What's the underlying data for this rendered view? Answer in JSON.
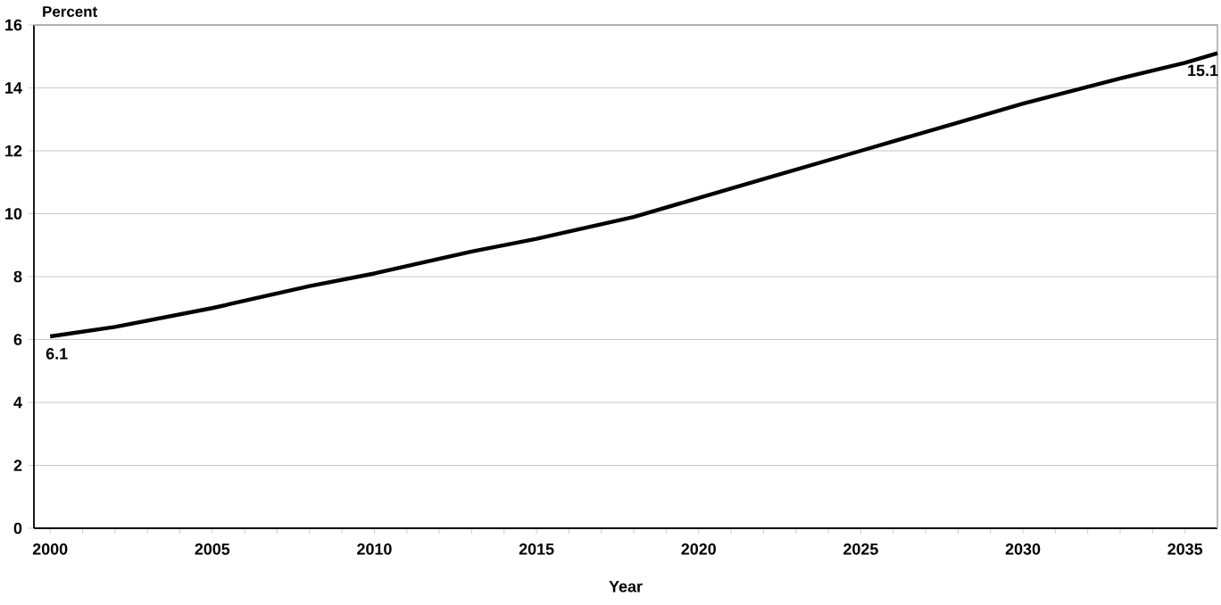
{
  "chart_data": {
    "type": "line",
    "xlabel": "Year",
    "ylabel": "Percent",
    "x": [
      2000,
      2002,
      2005,
      2008,
      2010,
      2013,
      2015,
      2018,
      2020,
      2022,
      2025,
      2028,
      2030,
      2033,
      2035,
      2036
    ],
    "series": [
      {
        "color": "#000000",
        "values": [
          6.1,
          6.4,
          7.0,
          7.7,
          8.1,
          8.8,
          9.2,
          9.9,
          10.5,
          11.1,
          12.0,
          12.9,
          13.5,
          14.3,
          14.8,
          15.1
        ],
        "value_labels": [
          "6.1",
          null,
          null,
          null,
          null,
          null,
          null,
          null,
          null,
          null,
          null,
          null,
          null,
          null,
          null,
          "15.1"
        ]
      }
    ],
    "xlim": [
      1999.5,
      2036
    ],
    "ylim": [
      0,
      16
    ],
    "xticks": [
      2000,
      {
        "value": 2001,
        "label": null
      },
      {
        "value": 2002,
        "label": null
      },
      {
        "value": 2003,
        "label": null
      },
      {
        "value": 2004,
        "label": null
      },
      2005,
      {
        "value": 2006,
        "label": null
      },
      {
        "value": 2007,
        "label": null
      },
      {
        "value": 2008,
        "label": null
      },
      {
        "value": 2009,
        "label": null
      },
      2010,
      {
        "value": 2011,
        "label": null
      },
      {
        "value": 2012,
        "label": null
      },
      {
        "value": 2013,
        "label": null
      },
      {
        "value": 2014,
        "label": null
      },
      2015,
      {
        "value": 2016,
        "label": null
      },
      {
        "value": 2017,
        "label": null
      },
      {
        "value": 2018,
        "label": null
      },
      {
        "value": 2019,
        "label": null
      },
      2020,
      {
        "value": 2021,
        "label": null
      },
      {
        "value": 2022,
        "label": null
      },
      {
        "value": 2023,
        "label": null
      },
      {
        "value": 2024,
        "label": null
      },
      2025,
      {
        "value": 2026,
        "label": null
      },
      {
        "value": 2027,
        "label": null
      },
      {
        "value": 2028,
        "label": null
      },
      {
        "value": 2029,
        "label": null
      },
      2030,
      {
        "value": 2031,
        "label": null
      },
      {
        "value": 2032,
        "label": null
      },
      {
        "value": 2033,
        "label": null
      },
      {
        "value": 2034,
        "label": null
      },
      2035
    ],
    "yticks": [
      0,
      2,
      4,
      6,
      8,
      10,
      12,
      14,
      16
    ],
    "grid": "y",
    "marker": "none",
    "line_style": "solid"
  }
}
